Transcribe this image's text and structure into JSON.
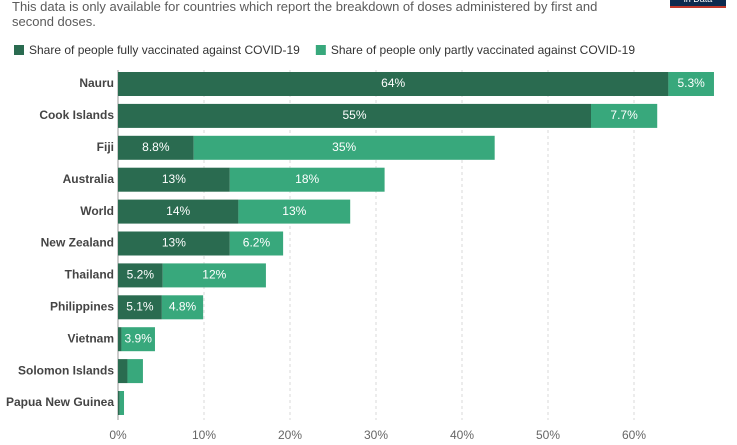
{
  "chart_data": {
    "type": "stacked-barh",
    "subtitle": "This data is only available for countries which report the breakdown of doses administered by first and second doses.",
    "logo": "in Data",
    "categories": [
      "Nauru",
      "Cook Islands",
      "Fiji",
      "Australia",
      "World",
      "New Zealand",
      "Thailand",
      "Philippines",
      "Vietnam",
      "Solomon Islands",
      "Papua New Guinea"
    ],
    "series": [
      {
        "name": "Share of people fully vaccinated against COVID-19",
        "color": "#2a6b50",
        "values": [
          64,
          55,
          8.8,
          13,
          14,
          13,
          5.2,
          5.1,
          0.4,
          1.1,
          0.2
        ],
        "value_labels": [
          "64%",
          "55%",
          "8.8%",
          "13%",
          "14%",
          "13%",
          "5.2%",
          "5.1%",
          null,
          null,
          null
        ]
      },
      {
        "name": "Share of people only partly vaccinated against COVID-19",
        "color": "#38a87c",
        "values": [
          5.3,
          7.7,
          35,
          18,
          13,
          6.2,
          12,
          4.8,
          3.9,
          1.8,
          0.5
        ],
        "value_labels": [
          "5.3%",
          "7.7%",
          "35%",
          "18%",
          "13%",
          "6.2%",
          "12%",
          "4.8%",
          "3.9%",
          null,
          null
        ]
      }
    ],
    "xlim": [
      0,
      70
    ],
    "xticks": [
      {
        "value": 0,
        "label": "0%"
      },
      {
        "value": 10,
        "label": "10%"
      },
      {
        "value": 20,
        "label": "20%"
      },
      {
        "value": 30,
        "label": "30%"
      },
      {
        "value": 40,
        "label": "40%"
      },
      {
        "value": 50,
        "label": "50%"
      },
      {
        "value": 60,
        "label": "60%"
      }
    ],
    "grid": true
  }
}
